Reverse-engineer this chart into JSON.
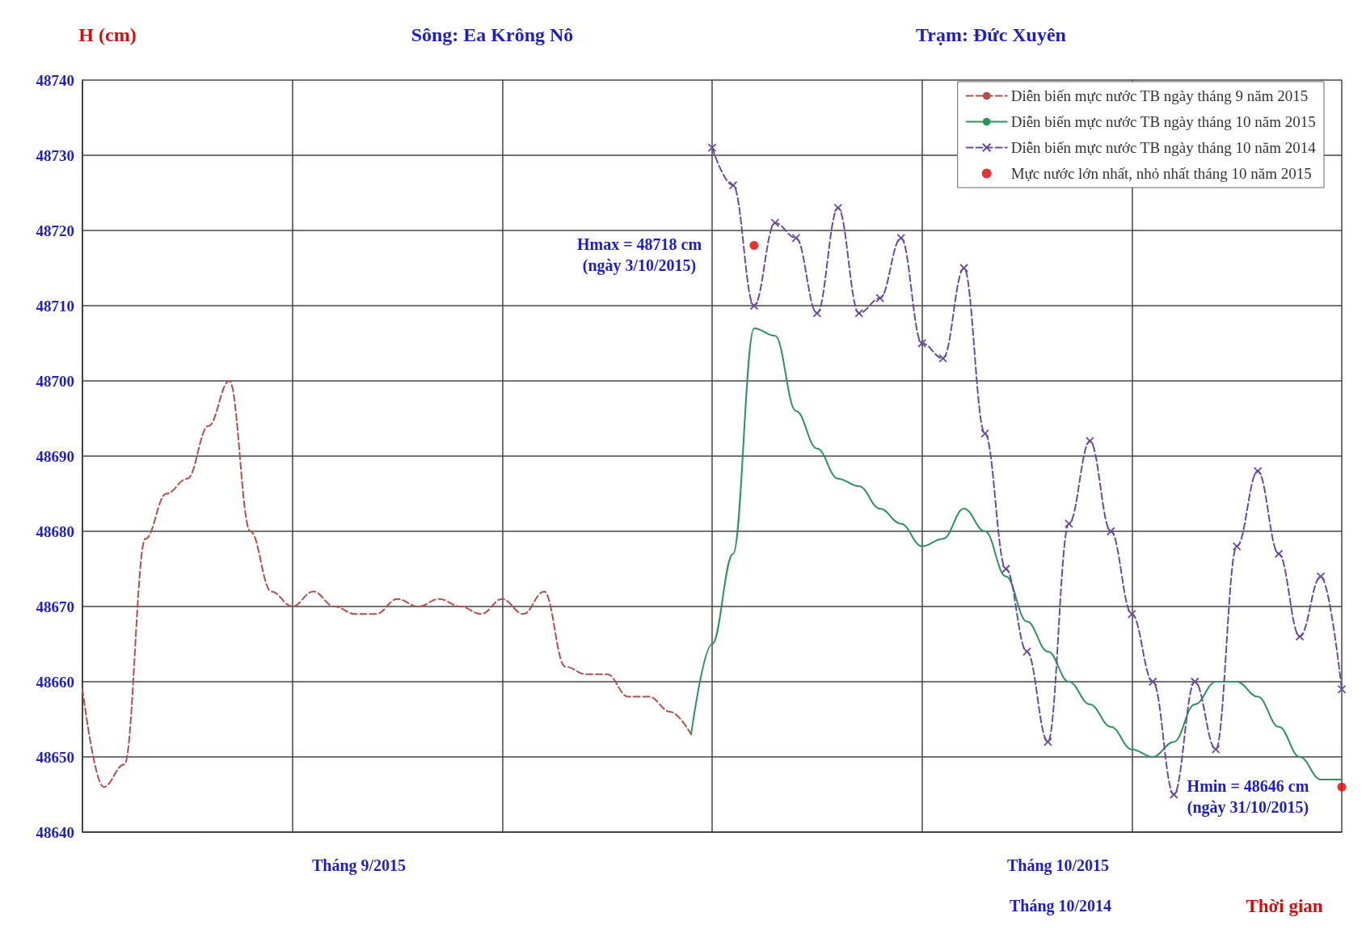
{
  "chart_data": {
    "type": "line",
    "title": "Sông: Ea Krông Nô",
    "subtitle": "Trạm: Đức Xuyên",
    "ylabel": "H (cm)",
    "xlabel": "Thời gian",
    "annotations": [
      "Hmax = 48718 cm\n(ngày 3/10/2015)",
      "Hmin = 48646 cm\n(ngày 31/10/2015)",
      "Tháng 9/2015",
      "Tháng 10/2015",
      "Tháng 10/2014"
    ],
    "categories": [
      null,
      null,
      null,
      null,
      null,
      null,
      null,
      null,
      null,
      null,
      null,
      null,
      null,
      null,
      null,
      null,
      null,
      null,
      null,
      null,
      null,
      null,
      null,
      null,
      null,
      null,
      null,
      null,
      null,
      null,
      null,
      null,
      null,
      null,
      null,
      null,
      null,
      null,
      null,
      null,
      null,
      null,
      null,
      null,
      null,
      null,
      null,
      null,
      null,
      null,
      null,
      null,
      null,
      null,
      null,
      null,
      null,
      null,
      null,
      null,
      null
    ],
    "ylim": [
      48640,
      48740
    ],
    "yticks": [
      48640,
      48650,
      48660,
      48670,
      48680,
      48690,
      48700,
      48710,
      48720,
      48730,
      48740
    ],
    "tick_labels": "y",
    "grid": true,
    "legend": "top right",
    "series": [
      {
        "name": "Diễn biến mực nước TB ngày tháng 9 năm 2015",
        "color": "#b0504d",
        "line_style": "dashed",
        "marker": "none",
        "values": [
          48659,
          48646,
          48649,
          48679,
          48685,
          48687,
          48694,
          48700,
          48680,
          48672,
          48670,
          48672,
          48670,
          48669,
          48669,
          48671,
          48670,
          48671,
          48670,
          48669,
          48671,
          48669,
          48672,
          48662,
          48661,
          48661,
          48658,
          48658,
          48656,
          48653,
          null,
          null,
          null,
          null,
          null,
          null,
          null,
          null,
          null,
          null,
          null,
          null,
          null,
          null,
          null,
          null,
          null,
          null,
          null,
          null,
          null,
          null,
          null,
          null,
          null,
          null,
          null,
          null,
          null,
          null,
          null
        ]
      },
      {
        "name": "Diễn biến mực nước TB ngày tháng 10 năm 2015",
        "color": "#2f9160",
        "line_style": "solid",
        "marker": "none",
        "values": [
          null,
          null,
          null,
          null,
          null,
          null,
          null,
          null,
          null,
          null,
          null,
          null,
          null,
          null,
          null,
          null,
          null,
          null,
          null,
          null,
          null,
          null,
          null,
          null,
          null,
          null,
          null,
          null,
          null,
          48653,
          48665,
          48677,
          48707,
          48706,
          48696,
          48691,
          48687,
          48686,
          48683,
          48681,
          48678,
          48679,
          48683,
          48680,
          48674,
          48668,
          48664,
          48660,
          48657,
          48654,
          48651,
          48650,
          48652,
          48657,
          48660,
          48660,
          48658,
          48654,
          48650,
          48647,
          48647
        ]
      },
      {
        "name": "Diễn biến mực nước TB ngày tháng 10 năm 2014",
        "color": "#6a4c9c",
        "line_style": "dashed",
        "marker": "cross",
        "values": [
          null,
          null,
          null,
          null,
          null,
          null,
          null,
          null,
          null,
          null,
          null,
          null,
          null,
          null,
          null,
          null,
          null,
          null,
          null,
          null,
          null,
          null,
          null,
          null,
          null,
          null,
          null,
          null,
          null,
          null,
          48731,
          48726,
          48710,
          48721,
          48719,
          48709,
          48723,
          48709,
          48711,
          48719,
          48705,
          48703,
          48715,
          48693,
          48675,
          48664,
          48652,
          48681,
          48692,
          48680,
          48669,
          48660,
          48645,
          48660,
          48651,
          48678,
          48688,
          48677,
          48666,
          48674,
          48659
        ]
      },
      {
        "name": "Mực nước lớn nhất, nhỏ nhất tháng 10 năm 2015",
        "type": "scatter",
        "color": "#e00000",
        "marker": "circle",
        "values": [
          null,
          null,
          null,
          null,
          null,
          null,
          null,
          null,
          null,
          null,
          null,
          null,
          null,
          null,
          null,
          null,
          null,
          null,
          null,
          null,
          null,
          null,
          null,
          null,
          null,
          null,
          null,
          null,
          null,
          null,
          null,
          null,
          48718,
          null,
          null,
          null,
          null,
          null,
          null,
          null,
          null,
          null,
          null,
          null,
          null,
          null,
          null,
          null,
          null,
          null,
          null,
          null,
          null,
          null,
          null,
          null,
          null,
          null,
          null,
          null,
          48646
        ]
      }
    ]
  }
}
